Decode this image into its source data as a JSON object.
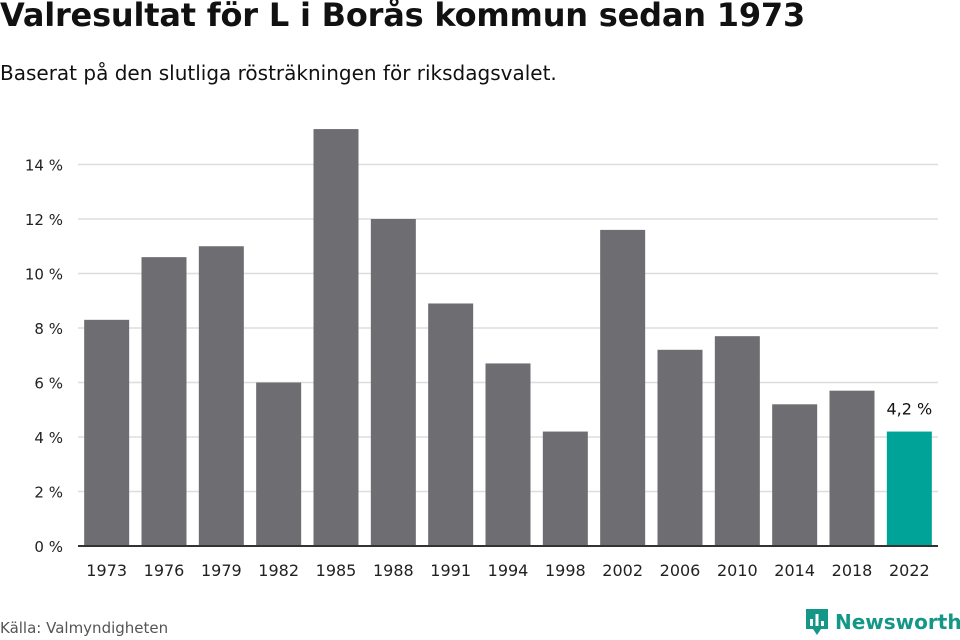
{
  "chart_data": {
    "type": "bar",
    "title": "Valresultat för L i Borås kommun sedan 1973",
    "subtitle": "Baserat på den slutliga rösträkningen för riksdagsvalet.",
    "categories": [
      "1973",
      "1976",
      "1979",
      "1982",
      "1985",
      "1988",
      "1991",
      "1994",
      "1998",
      "2002",
      "2006",
      "2010",
      "2014",
      "2018",
      "2022"
    ],
    "values": [
      8.3,
      10.6,
      11.0,
      6.0,
      15.3,
      12.0,
      8.9,
      6.7,
      4.2,
      11.6,
      7.2,
      7.7,
      5.2,
      5.7,
      4.2
    ],
    "ylim": [
      0,
      16
    ],
    "yticks": [
      "0 %",
      "2 %",
      "4 %",
      "6 %",
      "8 %",
      "10 %",
      "12 %",
      "14 %"
    ],
    "grid": true,
    "highlight_label": "4,2 %",
    "colors": {
      "bar": "#6e6d72",
      "highlight": "#00a398",
      "grid": "#dddddd",
      "axis": "#333333"
    }
  },
  "footer": {
    "source": "Källa: Valmyndigheten",
    "brand": "Newsworthy",
    "brand_icon": "newsworthy-logo-icon"
  }
}
